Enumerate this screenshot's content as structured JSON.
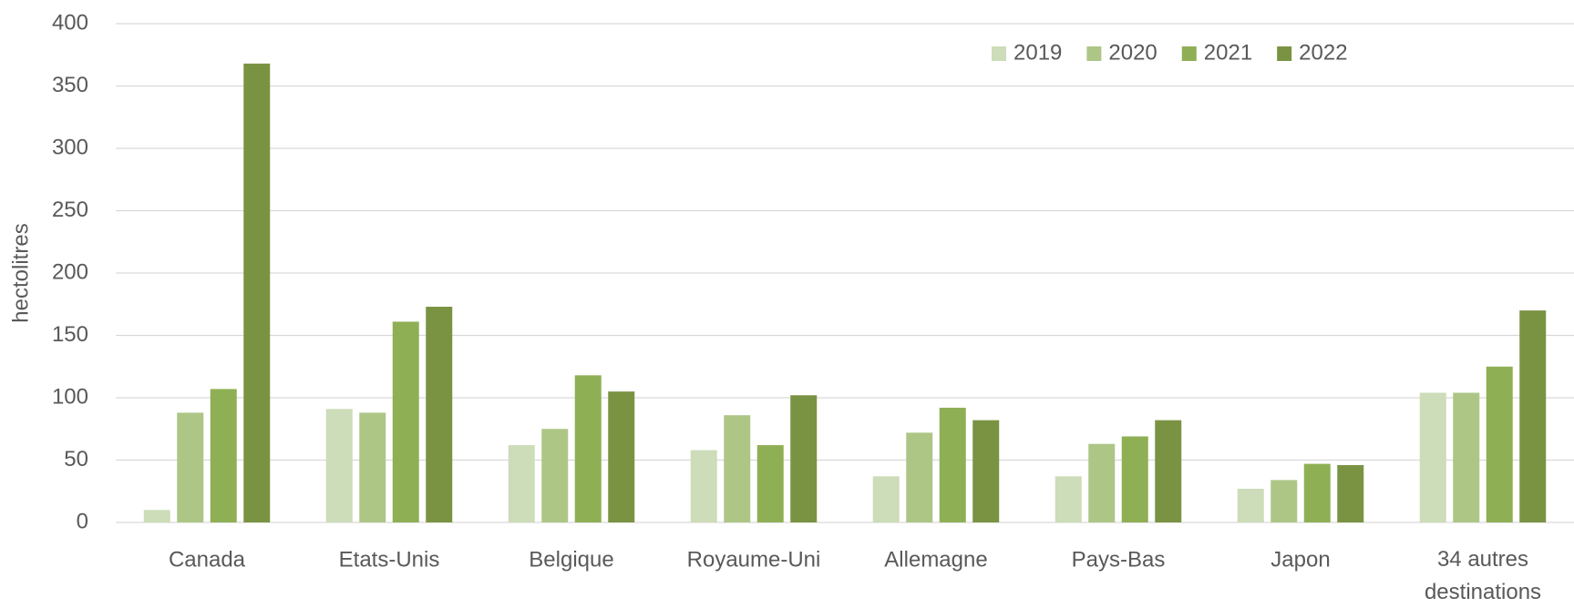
{
  "chart_data": {
    "type": "bar",
    "y_label": "hectolitres",
    "categories": [
      "Canada",
      "Etats-Unis",
      "Belgique",
      "Royaume-Uni",
      "Allemagne",
      "Pays-Bas",
      "Japon",
      "34 autres destinations"
    ],
    "series": [
      {
        "name": "2019",
        "color": "#cddcb9",
        "values": [
          10,
          91,
          62,
          58,
          37,
          37,
          27,
          104
        ]
      },
      {
        "name": "2020",
        "color": "#adc686",
        "values": [
          88,
          88,
          75,
          86,
          72,
          63,
          34,
          104
        ]
      },
      {
        "name": "2021",
        "color": "#8faf55",
        "values": [
          107,
          161,
          118,
          62,
          92,
          69,
          47,
          125
        ]
      },
      {
        "name": "2022",
        "color": "#7a9343",
        "values": [
          368,
          173,
          105,
          102,
          82,
          82,
          46,
          170
        ]
      }
    ],
    "ylim": [
      0,
      400
    ],
    "yticks": [
      0,
      50,
      100,
      150,
      200,
      250,
      300,
      350,
      400
    ],
    "grid": true,
    "legend": "top"
  }
}
